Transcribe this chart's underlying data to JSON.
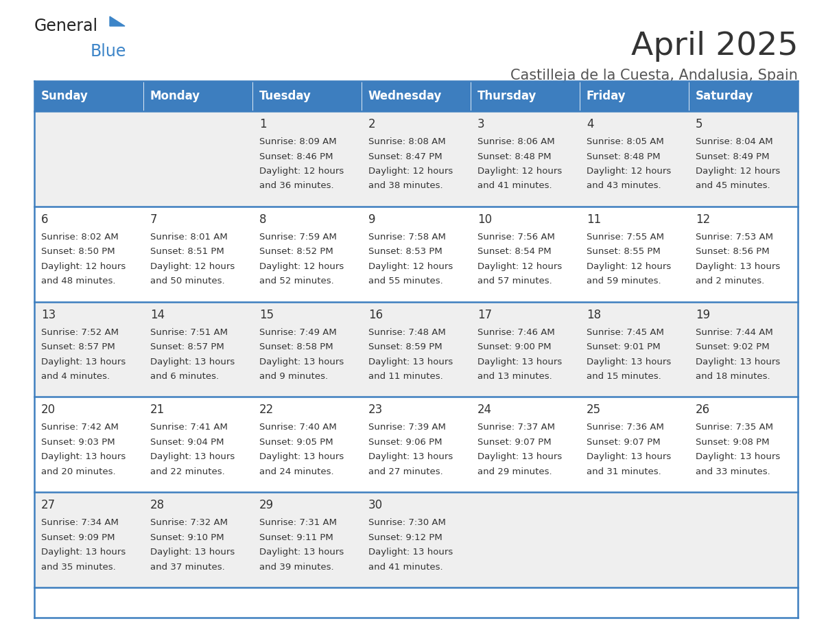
{
  "title": "April 2025",
  "subtitle": "Castilleja de la Cuesta, Andalusia, Spain",
  "days_of_week": [
    "Sunday",
    "Monday",
    "Tuesday",
    "Wednesday",
    "Thursday",
    "Friday",
    "Saturday"
  ],
  "header_bg": "#3d7ebf",
  "header_text": "#ffffff",
  "row_bg_odd": "#efefef",
  "row_bg_even": "#ffffff",
  "cell_text_color": "#333333",
  "day_num_color": "#333333",
  "title_color": "#333333",
  "subtitle_color": "#555555",
  "divider_color": "#3d7ebf",
  "calendar_data": [
    [
      {
        "day": null,
        "sunrise": null,
        "sunset": null,
        "daylight_line1": null,
        "daylight_line2": null
      },
      {
        "day": null,
        "sunrise": null,
        "sunset": null,
        "daylight_line1": null,
        "daylight_line2": null
      },
      {
        "day": 1,
        "sunrise": "8:09 AM",
        "sunset": "8:46 PM",
        "daylight_line1": "Daylight: 12 hours",
        "daylight_line2": "and 36 minutes."
      },
      {
        "day": 2,
        "sunrise": "8:08 AM",
        "sunset": "8:47 PM",
        "daylight_line1": "Daylight: 12 hours",
        "daylight_line2": "and 38 minutes."
      },
      {
        "day": 3,
        "sunrise": "8:06 AM",
        "sunset": "8:48 PM",
        "daylight_line1": "Daylight: 12 hours",
        "daylight_line2": "and 41 minutes."
      },
      {
        "day": 4,
        "sunrise": "8:05 AM",
        "sunset": "8:48 PM",
        "daylight_line1": "Daylight: 12 hours",
        "daylight_line2": "and 43 minutes."
      },
      {
        "day": 5,
        "sunrise": "8:04 AM",
        "sunset": "8:49 PM",
        "daylight_line1": "Daylight: 12 hours",
        "daylight_line2": "and 45 minutes."
      }
    ],
    [
      {
        "day": 6,
        "sunrise": "8:02 AM",
        "sunset": "8:50 PM",
        "daylight_line1": "Daylight: 12 hours",
        "daylight_line2": "and 48 minutes."
      },
      {
        "day": 7,
        "sunrise": "8:01 AM",
        "sunset": "8:51 PM",
        "daylight_line1": "Daylight: 12 hours",
        "daylight_line2": "and 50 minutes."
      },
      {
        "day": 8,
        "sunrise": "7:59 AM",
        "sunset": "8:52 PM",
        "daylight_line1": "Daylight: 12 hours",
        "daylight_line2": "and 52 minutes."
      },
      {
        "day": 9,
        "sunrise": "7:58 AM",
        "sunset": "8:53 PM",
        "daylight_line1": "Daylight: 12 hours",
        "daylight_line2": "and 55 minutes."
      },
      {
        "day": 10,
        "sunrise": "7:56 AM",
        "sunset": "8:54 PM",
        "daylight_line1": "Daylight: 12 hours",
        "daylight_line2": "and 57 minutes."
      },
      {
        "day": 11,
        "sunrise": "7:55 AM",
        "sunset": "8:55 PM",
        "daylight_line1": "Daylight: 12 hours",
        "daylight_line2": "and 59 minutes."
      },
      {
        "day": 12,
        "sunrise": "7:53 AM",
        "sunset": "8:56 PM",
        "daylight_line1": "Daylight: 13 hours",
        "daylight_line2": "and 2 minutes."
      }
    ],
    [
      {
        "day": 13,
        "sunrise": "7:52 AM",
        "sunset": "8:57 PM",
        "daylight_line1": "Daylight: 13 hours",
        "daylight_line2": "and 4 minutes."
      },
      {
        "day": 14,
        "sunrise": "7:51 AM",
        "sunset": "8:57 PM",
        "daylight_line1": "Daylight: 13 hours",
        "daylight_line2": "and 6 minutes."
      },
      {
        "day": 15,
        "sunrise": "7:49 AM",
        "sunset": "8:58 PM",
        "daylight_line1": "Daylight: 13 hours",
        "daylight_line2": "and 9 minutes."
      },
      {
        "day": 16,
        "sunrise": "7:48 AM",
        "sunset": "8:59 PM",
        "daylight_line1": "Daylight: 13 hours",
        "daylight_line2": "and 11 minutes."
      },
      {
        "day": 17,
        "sunrise": "7:46 AM",
        "sunset": "9:00 PM",
        "daylight_line1": "Daylight: 13 hours",
        "daylight_line2": "and 13 minutes."
      },
      {
        "day": 18,
        "sunrise": "7:45 AM",
        "sunset": "9:01 PM",
        "daylight_line1": "Daylight: 13 hours",
        "daylight_line2": "and 15 minutes."
      },
      {
        "day": 19,
        "sunrise": "7:44 AM",
        "sunset": "9:02 PM",
        "daylight_line1": "Daylight: 13 hours",
        "daylight_line2": "and 18 minutes."
      }
    ],
    [
      {
        "day": 20,
        "sunrise": "7:42 AM",
        "sunset": "9:03 PM",
        "daylight_line1": "Daylight: 13 hours",
        "daylight_line2": "and 20 minutes."
      },
      {
        "day": 21,
        "sunrise": "7:41 AM",
        "sunset": "9:04 PM",
        "daylight_line1": "Daylight: 13 hours",
        "daylight_line2": "and 22 minutes."
      },
      {
        "day": 22,
        "sunrise": "7:40 AM",
        "sunset": "9:05 PM",
        "daylight_line1": "Daylight: 13 hours",
        "daylight_line2": "and 24 minutes."
      },
      {
        "day": 23,
        "sunrise": "7:39 AM",
        "sunset": "9:06 PM",
        "daylight_line1": "Daylight: 13 hours",
        "daylight_line2": "and 27 minutes."
      },
      {
        "day": 24,
        "sunrise": "7:37 AM",
        "sunset": "9:07 PM",
        "daylight_line1": "Daylight: 13 hours",
        "daylight_line2": "and 29 minutes."
      },
      {
        "day": 25,
        "sunrise": "7:36 AM",
        "sunset": "9:07 PM",
        "daylight_line1": "Daylight: 13 hours",
        "daylight_line2": "and 31 minutes."
      },
      {
        "day": 26,
        "sunrise": "7:35 AM",
        "sunset": "9:08 PM",
        "daylight_line1": "Daylight: 13 hours",
        "daylight_line2": "and 33 minutes."
      }
    ],
    [
      {
        "day": 27,
        "sunrise": "7:34 AM",
        "sunset": "9:09 PM",
        "daylight_line1": "Daylight: 13 hours",
        "daylight_line2": "and 35 minutes."
      },
      {
        "day": 28,
        "sunrise": "7:32 AM",
        "sunset": "9:10 PM",
        "daylight_line1": "Daylight: 13 hours",
        "daylight_line2": "and 37 minutes."
      },
      {
        "day": 29,
        "sunrise": "7:31 AM",
        "sunset": "9:11 PM",
        "daylight_line1": "Daylight: 13 hours",
        "daylight_line2": "and 39 minutes."
      },
      {
        "day": 30,
        "sunrise": "7:30 AM",
        "sunset": "9:12 PM",
        "daylight_line1": "Daylight: 13 hours",
        "daylight_line2": "and 41 minutes."
      },
      {
        "day": null,
        "sunrise": null,
        "sunset": null,
        "daylight_line1": null,
        "daylight_line2": null
      },
      {
        "day": null,
        "sunrise": null,
        "sunset": null,
        "daylight_line1": null,
        "daylight_line2": null
      },
      {
        "day": null,
        "sunrise": null,
        "sunset": null,
        "daylight_line1": null,
        "daylight_line2": null
      }
    ]
  ],
  "logo_text_general": "General",
  "logo_text_blue": "Blue",
  "logo_color_general": "#222222",
  "logo_color_blue": "#3d85c8",
  "logo_triangle_color": "#3d85c8",
  "cell_font_size": 9.5,
  "day_font_size": 12,
  "header_font_size": 12
}
